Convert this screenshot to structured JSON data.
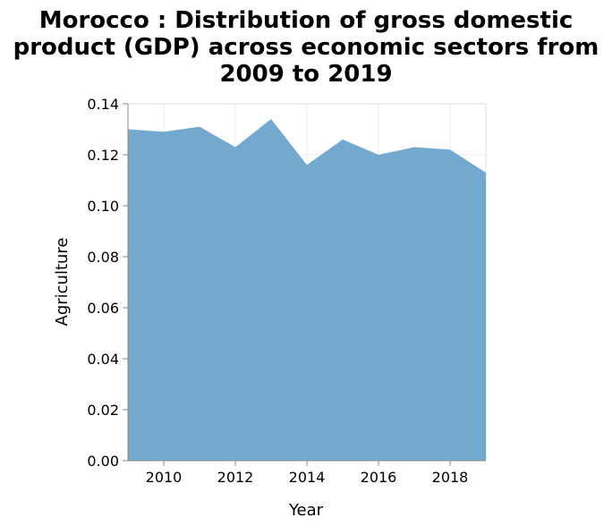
{
  "chart_data": {
    "type": "area",
    "title_lines": [
      "Morocco : Distribution of gross domestic",
      "product (GDP) across economic sectors from",
      "2009 to 2019"
    ],
    "xlabel": "Year",
    "ylabel": "Agriculture",
    "xlim": [
      2009,
      2019
    ],
    "ylim": [
      0,
      0.14
    ],
    "x_ticks": [
      2010,
      2012,
      2014,
      2016,
      2018
    ],
    "y_ticks": [
      "0.00",
      "0.02",
      "0.04",
      "0.06",
      "0.08",
      "0.10",
      "0.12",
      "0.14"
    ],
    "grid": true,
    "legend": "none",
    "fill_color": "#73a8cf",
    "series": [
      {
        "x": [
          2009,
          2010,
          2011,
          2012,
          2013,
          2014,
          2015,
          2016,
          2017,
          2018,
          2019
        ],
        "values": [
          0.13,
          0.129,
          0.131,
          0.123,
          0.134,
          0.116,
          0.126,
          0.12,
          0.123,
          0.122,
          0.113
        ]
      }
    ]
  }
}
